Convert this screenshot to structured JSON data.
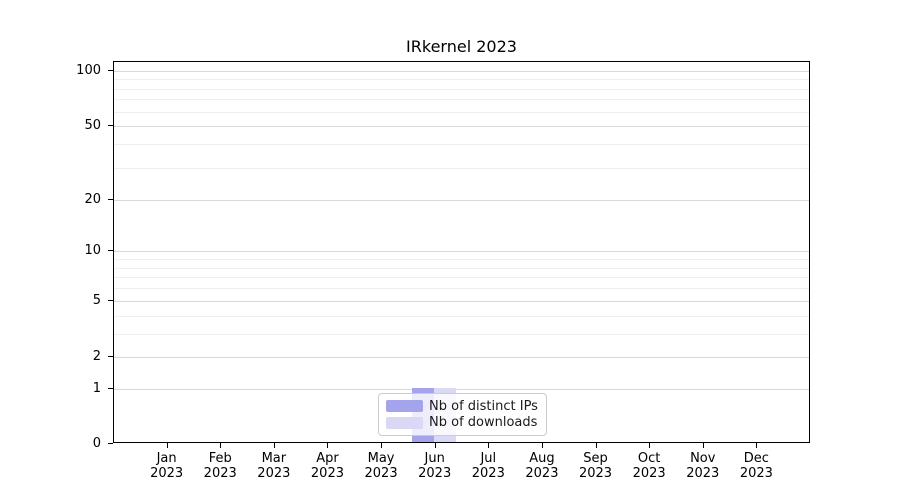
{
  "chart_data": {
    "type": "bar",
    "title": "IRkernel 2023",
    "categories": [
      "Jan 2023",
      "Feb 2023",
      "Mar 2023",
      "Apr 2023",
      "May 2023",
      "Jun 2023",
      "Jul 2023",
      "Aug 2023",
      "Sep 2023",
      "Oct 2023",
      "Nov 2023",
      "Dec 2023"
    ],
    "x_tick_line1": [
      "Jan",
      "Feb",
      "Mar",
      "Apr",
      "May",
      "Jun",
      "Jul",
      "Aug",
      "Sep",
      "Oct",
      "Nov",
      "Dec"
    ],
    "x_tick_line2": "2023",
    "series": [
      {
        "name": "Nb of distinct IPs",
        "color": "#a4a4ec",
        "values": [
          0,
          0,
          0,
          0,
          0,
          1,
          0,
          0,
          0,
          0,
          0,
          0
        ]
      },
      {
        "name": "Nb of downloads",
        "color": "#d9d9f6",
        "values": [
          0,
          0,
          0,
          0,
          0,
          1,
          0,
          0,
          0,
          0,
          0,
          0
        ]
      }
    ],
    "xlabel": "",
    "ylabel": "",
    "yscale": "log1p",
    "ylim": [
      0,
      110
    ],
    "y_major_ticks": [
      0,
      1,
      2,
      5,
      10,
      20,
      50,
      100
    ],
    "y_minor_ticks": [
      3,
      4,
      6,
      7,
      8,
      9,
      30,
      40,
      60,
      70,
      80,
      90
    ],
    "grid": true,
    "legend_position": "lower center"
  },
  "style_colors": {
    "major_grid": "#d9d9d9",
    "minor_grid": "#eeeeee",
    "axis_line": "#000000",
    "legend_border": "#cccccc",
    "background": "#ffffff"
  }
}
